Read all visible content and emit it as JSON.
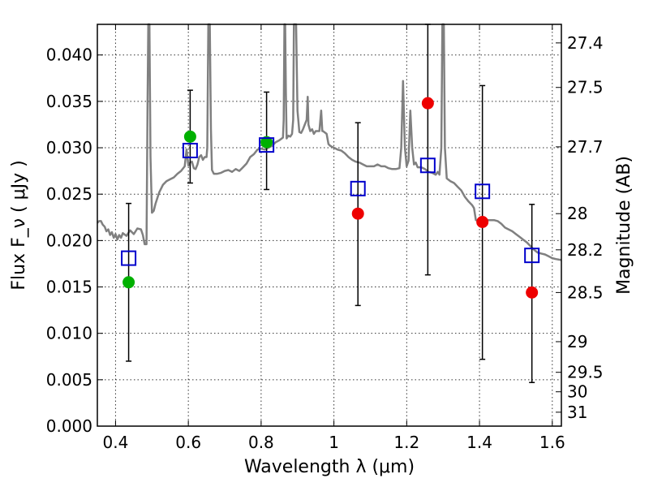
{
  "chart_data": {
    "type": "scatter",
    "xlabel": "Wavelength  λ (μm)",
    "ylabel": "Flux  F_ν  ( μJy )",
    "ylabel_right": "Magnitude (AB)",
    "xlim": [
      0.35,
      1.625
    ],
    "ylim": [
      0.0,
      0.0433
    ],
    "grid": true,
    "x_ticks": [
      {
        "value": 0.4,
        "label": "0.4"
      },
      {
        "value": 0.6,
        "label": "0.6"
      },
      {
        "value": 0.8,
        "label": "0.8"
      },
      {
        "value": 1.0,
        "label": "1"
      },
      {
        "value": 1.2,
        "label": "1.2"
      },
      {
        "value": 1.4,
        "label": "1.4"
      },
      {
        "value": 1.6,
        "label": "1.6"
      }
    ],
    "y_ticks": [
      {
        "value": 0.0,
        "label": "0.000"
      },
      {
        "value": 0.005,
        "label": "0.005"
      },
      {
        "value": 0.01,
        "label": "0.010"
      },
      {
        "value": 0.015,
        "label": "0.015"
      },
      {
        "value": 0.02,
        "label": "0.020"
      },
      {
        "value": 0.025,
        "label": "0.025"
      },
      {
        "value": 0.03,
        "label": "0.030"
      },
      {
        "value": 0.035,
        "label": "0.035"
      },
      {
        "value": 0.04,
        "label": "0.040"
      }
    ],
    "right_ticks": [
      {
        "flux": 0.0413,
        "label": "27.4"
      },
      {
        "flux": 0.0365,
        "label": "27.5"
      },
      {
        "flux": 0.0301,
        "label": "27.7"
      },
      {
        "flux": 0.0229,
        "label": "28"
      },
      {
        "flux": 0.019,
        "label": "28.2"
      },
      {
        "flux": 0.0144,
        "label": "28.5"
      },
      {
        "flux": 0.0091,
        "label": "29"
      },
      {
        "flux": 0.0058,
        "label": "29.5"
      },
      {
        "flux": 0.0037,
        "label": "30"
      },
      {
        "flux": 0.0015,
        "label": "31"
      }
    ],
    "model_spectrum": {
      "color": "#808080",
      "points": [
        [
          0.35,
          0.0219
        ],
        [
          0.355,
          0.0221
        ],
        [
          0.36,
          0.0221
        ],
        [
          0.365,
          0.0217
        ],
        [
          0.37,
          0.0215
        ],
        [
          0.375,
          0.021
        ],
        [
          0.38,
          0.0212
        ],
        [
          0.385,
          0.0206
        ],
        [
          0.39,
          0.0209
        ],
        [
          0.395,
          0.0203
        ],
        [
          0.4,
          0.0207
        ],
        [
          0.405,
          0.0201
        ],
        [
          0.41,
          0.0206
        ],
        [
          0.415,
          0.0203
        ],
        [
          0.42,
          0.0208
        ],
        [
          0.43,
          0.0205
        ],
        [
          0.44,
          0.0211
        ],
        [
          0.45,
          0.0207
        ],
        [
          0.46,
          0.0213
        ],
        [
          0.47,
          0.0212
        ],
        [
          0.475,
          0.0206
        ],
        [
          0.48,
          0.0196
        ],
        [
          0.485,
          0.0196
        ],
        [
          0.488,
          0.035
        ],
        [
          0.49,
          0.0433
        ],
        [
          0.493,
          0.0433
        ],
        [
          0.496,
          0.029
        ],
        [
          0.5,
          0.023
        ],
        [
          0.505,
          0.0232
        ],
        [
          0.51,
          0.024
        ],
        [
          0.52,
          0.0252
        ],
        [
          0.53,
          0.026
        ],
        [
          0.54,
          0.0264
        ],
        [
          0.55,
          0.0266
        ],
        [
          0.56,
          0.0268
        ],
        [
          0.57,
          0.0272
        ],
        [
          0.58,
          0.0275
        ],
        [
          0.59,
          0.028
        ],
        [
          0.595,
          0.0298
        ],
        [
          0.6,
          0.0281
        ],
        [
          0.605,
          0.0284
        ],
        [
          0.61,
          0.0285
        ],
        [
          0.615,
          0.0278
        ],
        [
          0.62,
          0.0277
        ],
        [
          0.625,
          0.0282
        ],
        [
          0.63,
          0.029
        ],
        [
          0.635,
          0.0292
        ],
        [
          0.64,
          0.0287
        ],
        [
          0.645,
          0.029
        ],
        [
          0.65,
          0.029
        ],
        [
          0.652,
          0.03
        ],
        [
          0.655,
          0.0433
        ],
        [
          0.659,
          0.0433
        ],
        [
          0.662,
          0.032
        ],
        [
          0.665,
          0.0276
        ],
        [
          0.67,
          0.0272
        ],
        [
          0.675,
          0.0272
        ],
        [
          0.68,
          0.0272
        ],
        [
          0.69,
          0.0273
        ],
        [
          0.7,
          0.0275
        ],
        [
          0.71,
          0.0276
        ],
        [
          0.72,
          0.0274
        ],
        [
          0.73,
          0.0277
        ],
        [
          0.74,
          0.0275
        ],
        [
          0.75,
          0.0279
        ],
        [
          0.76,
          0.0283
        ],
        [
          0.77,
          0.029
        ],
        [
          0.78,
          0.0293
        ],
        [
          0.79,
          0.0298
        ],
        [
          0.8,
          0.0299
        ],
        [
          0.81,
          0.0298
        ],
        [
          0.82,
          0.03
        ],
        [
          0.83,
          0.0302
        ],
        [
          0.84,
          0.0306
        ],
        [
          0.85,
          0.0308
        ],
        [
          0.86,
          0.0311
        ],
        [
          0.862,
          0.033
        ],
        [
          0.864,
          0.0433
        ],
        [
          0.866,
          0.0433
        ],
        [
          0.868,
          0.036
        ],
        [
          0.87,
          0.031
        ],
        [
          0.875,
          0.0313
        ],
        [
          0.88,
          0.0312
        ],
        [
          0.885,
          0.0315
        ],
        [
          0.888,
          0.033
        ],
        [
          0.89,
          0.0433
        ],
        [
          0.896,
          0.0433
        ],
        [
          0.9,
          0.034
        ],
        [
          0.905,
          0.0317
        ],
        [
          0.91,
          0.0316
        ],
        [
          0.915,
          0.032
        ],
        [
          0.92,
          0.0325
        ],
        [
          0.925,
          0.033
        ],
        [
          0.928,
          0.0355
        ],
        [
          0.93,
          0.0325
        ],
        [
          0.935,
          0.0318
        ],
        [
          0.94,
          0.032
        ],
        [
          0.945,
          0.0315
        ],
        [
          0.95,
          0.0318
        ],
        [
          0.96,
          0.0318
        ],
        [
          0.965,
          0.034
        ],
        [
          0.968,
          0.0318
        ],
        [
          0.97,
          0.0318
        ],
        [
          0.98,
          0.0315
        ],
        [
          0.985,
          0.0304
        ],
        [
          0.99,
          0.0302
        ],
        [
          1.0,
          0.03
        ],
        [
          1.01,
          0.0298
        ],
        [
          1.02,
          0.0297
        ],
        [
          1.03,
          0.0294
        ],
        [
          1.04,
          0.029
        ],
        [
          1.05,
          0.0287
        ],
        [
          1.06,
          0.0285
        ],
        [
          1.07,
          0.0284
        ],
        [
          1.08,
          0.0282
        ],
        [
          1.09,
          0.028
        ],
        [
          1.1,
          0.028
        ],
        [
          1.11,
          0.028
        ],
        [
          1.12,
          0.0282
        ],
        [
          1.13,
          0.028
        ],
        [
          1.14,
          0.028
        ],
        [
          1.15,
          0.0278
        ],
        [
          1.16,
          0.0277
        ],
        [
          1.17,
          0.0277
        ],
        [
          1.18,
          0.0278
        ],
        [
          1.185,
          0.03
        ],
        [
          1.19,
          0.0372
        ],
        [
          1.195,
          0.03
        ],
        [
          1.2,
          0.028
        ],
        [
          1.205,
          0.0286
        ],
        [
          1.21,
          0.034
        ],
        [
          1.215,
          0.03
        ],
        [
          1.22,
          0.0282
        ],
        [
          1.225,
          0.0284
        ],
        [
          1.23,
          0.0279
        ],
        [
          1.24,
          0.0279
        ],
        [
          1.25,
          0.0277
        ],
        [
          1.26,
          0.0274
        ],
        [
          1.27,
          0.0273
        ],
        [
          1.28,
          0.0271
        ],
        [
          1.285,
          0.0274
        ],
        [
          1.29,
          0.0271
        ],
        [
          1.295,
          0.03
        ],
        [
          1.298,
          0.0433
        ],
        [
          1.302,
          0.0433
        ],
        [
          1.305,
          0.03
        ],
        [
          1.31,
          0.0267
        ],
        [
          1.32,
          0.0264
        ],
        [
          1.33,
          0.0262
        ],
        [
          1.34,
          0.0258
        ],
        [
          1.35,
          0.0254
        ],
        [
          1.36,
          0.0247
        ],
        [
          1.37,
          0.0242
        ],
        [
          1.38,
          0.0238
        ],
        [
          1.385,
          0.0235
        ],
        [
          1.39,
          0.0222
        ],
        [
          1.4,
          0.0221
        ],
        [
          1.41,
          0.0222
        ],
        [
          1.42,
          0.0222
        ],
        [
          1.43,
          0.0222
        ],
        [
          1.44,
          0.0222
        ],
        [
          1.45,
          0.0221
        ],
        [
          1.46,
          0.0218
        ],
        [
          1.47,
          0.0214
        ],
        [
          1.48,
          0.0212
        ],
        [
          1.49,
          0.021
        ],
        [
          1.5,
          0.0207
        ],
        [
          1.51,
          0.0204
        ],
        [
          1.52,
          0.0201
        ],
        [
          1.53,
          0.0198
        ],
        [
          1.54,
          0.0194
        ],
        [
          1.55,
          0.019
        ],
        [
          1.56,
          0.0187
        ],
        [
          1.57,
          0.0186
        ],
        [
          1.58,
          0.0185
        ],
        [
          1.59,
          0.0183
        ],
        [
          1.6,
          0.0181
        ],
        [
          1.61,
          0.018
        ],
        [
          1.625,
          0.0179
        ]
      ]
    },
    "series": [
      {
        "marker": "circle",
        "color": "#00b000",
        "points": [
          {
            "x": 0.436,
            "y": 0.0155
          },
          {
            "x": 0.605,
            "y": 0.0312
          },
          {
            "x": 0.815,
            "y": 0.0306
          }
        ]
      },
      {
        "marker": "circle",
        "color": "#ee0000",
        "points": [
          {
            "x": 1.066,
            "y": 0.0229
          },
          {
            "x": 1.258,
            "y": 0.0348
          },
          {
            "x": 1.408,
            "y": 0.022
          },
          {
            "x": 1.544,
            "y": 0.0144
          }
        ]
      },
      {
        "marker": "open-square",
        "color": "#0000cc",
        "points": [
          {
            "x": 0.436,
            "y": 0.0181,
            "err_low": 0.007,
            "err_high": 0.024
          },
          {
            "x": 0.605,
            "y": 0.0297,
            "err_low": 0.0262,
            "err_high": 0.0362
          },
          {
            "x": 0.815,
            "y": 0.0303,
            "err_low": 0.0255,
            "err_high": 0.036
          },
          {
            "x": 1.066,
            "y": 0.0256,
            "err_low": 0.013,
            "err_high": 0.0327
          },
          {
            "x": 1.258,
            "y": 0.0281,
            "err_low": 0.0163,
            "err_high": 0.0433
          },
          {
            "x": 1.408,
            "y": 0.0253,
            "err_low": 0.0072,
            "err_high": 0.0367
          },
          {
            "x": 1.544,
            "y": 0.0184,
            "err_low": 0.0047,
            "err_high": 0.0239
          }
        ]
      }
    ]
  }
}
